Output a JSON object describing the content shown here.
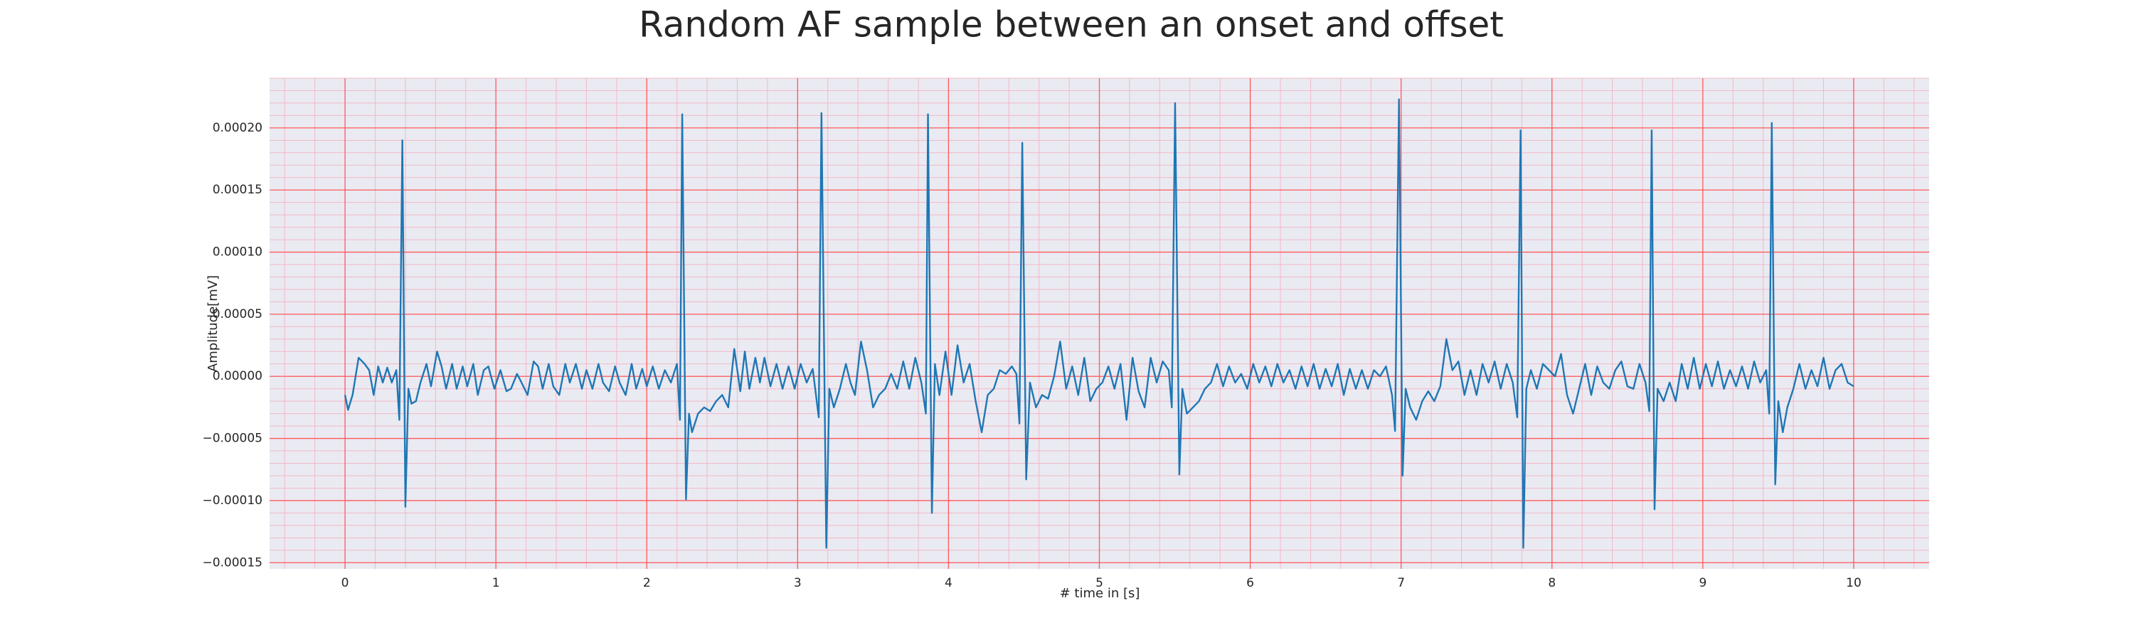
{
  "chart_data": {
    "type": "line",
    "title": "Random AF sample between an onset and offset",
    "x_label": "# time in [s]",
    "y_label": "Amplitude[mV]",
    "xlim": [
      -0.5,
      10.5
    ],
    "ylim": [
      -0.000155,
      0.00024
    ],
    "xticks": [
      0,
      1,
      2,
      3,
      4,
      5,
      6,
      7,
      8,
      9,
      10
    ],
    "yticks": [
      {
        "value": -0.00015,
        "label": "−0.00015"
      },
      {
        "value": -0.0001,
        "label": "−0.00010"
      },
      {
        "value": -5e-05,
        "label": "−0.00005"
      },
      {
        "value": 0,
        "label": "0.00000"
      },
      {
        "value": 5e-05,
        "label": "0.00005"
      },
      {
        "value": 0.0001,
        "label": "0.00010"
      },
      {
        "value": 0.00015,
        "label": "0.00015"
      },
      {
        "value": 0.0002,
        "label": "0.00020"
      }
    ],
    "grid": true,
    "grid_color": "#ff5a5a",
    "minor_grid_color": "#f2b8c6",
    "background": "#eaeaf2",
    "x": [
      0.0,
      0.02,
      0.05,
      0.09,
      0.13,
      0.16,
      0.19,
      0.22,
      0.25,
      0.28,
      0.31,
      0.34,
      0.36,
      0.38,
      0.4,
      0.42,
      0.44,
      0.47,
      0.5,
      0.54,
      0.57,
      0.61,
      0.64,
      0.67,
      0.71,
      0.74,
      0.78,
      0.81,
      0.85,
      0.88,
      0.92,
      0.95,
      0.99,
      1.03,
      1.07,
      1.1,
      1.14,
      1.17,
      1.21,
      1.25,
      1.28,
      1.31,
      1.35,
      1.38,
      1.42,
      1.46,
      1.49,
      1.53,
      1.57,
      1.6,
      1.64,
      1.68,
      1.71,
      1.75,
      1.79,
      1.82,
      1.86,
      1.9,
      1.93,
      1.97,
      2.0,
      2.04,
      2.08,
      2.12,
      2.16,
      2.2,
      2.22,
      2.235,
      2.26,
      2.28,
      2.3,
      2.34,
      2.38,
      2.42,
      2.46,
      2.5,
      2.54,
      2.58,
      2.62,
      2.65,
      2.68,
      2.72,
      2.75,
      2.78,
      2.82,
      2.86,
      2.9,
      2.94,
      2.98,
      3.02,
      3.06,
      3.1,
      3.14,
      3.158,
      3.19,
      3.21,
      3.24,
      3.28,
      3.32,
      3.35,
      3.38,
      3.42,
      3.46,
      3.5,
      3.54,
      3.58,
      3.62,
      3.66,
      3.7,
      3.74,
      3.78,
      3.82,
      3.85,
      3.864,
      3.89,
      3.91,
      3.94,
      3.98,
      4.02,
      4.06,
      4.1,
      4.14,
      4.18,
      4.22,
      4.26,
      4.3,
      4.34,
      4.38,
      4.42,
      4.45,
      4.47,
      4.489,
      4.515,
      4.54,
      4.58,
      4.62,
      4.66,
      4.7,
      4.74,
      4.78,
      4.82,
      4.86,
      4.9,
      4.94,
      4.98,
      5.02,
      5.06,
      5.1,
      5.14,
      5.18,
      5.22,
      5.26,
      5.3,
      5.34,
      5.38,
      5.42,
      5.46,
      5.48,
      5.502,
      5.53,
      5.55,
      5.58,
      5.62,
      5.66,
      5.7,
      5.74,
      5.78,
      5.82,
      5.86,
      5.9,
      5.94,
      5.98,
      6.02,
      6.06,
      6.1,
      6.14,
      6.18,
      6.22,
      6.26,
      6.3,
      6.34,
      6.38,
      6.42,
      6.46,
      6.5,
      6.54,
      6.58,
      6.62,
      6.66,
      6.7,
      6.74,
      6.78,
      6.82,
      6.86,
      6.9,
      6.94,
      6.96,
      6.986,
      7.01,
      7.03,
      7.06,
      7.1,
      7.14,
      7.18,
      7.22,
      7.26,
      7.3,
      7.34,
      7.38,
      7.42,
      7.46,
      7.5,
      7.54,
      7.58,
      7.62,
      7.66,
      7.7,
      7.74,
      7.77,
      7.792,
      7.81,
      7.83,
      7.86,
      7.9,
      7.94,
      7.98,
      8.02,
      8.06,
      8.1,
      8.14,
      8.18,
      8.22,
      8.26,
      8.3,
      8.34,
      8.38,
      8.42,
      8.46,
      8.5,
      8.54,
      8.58,
      8.62,
      8.645,
      8.661,
      8.68,
      8.7,
      8.74,
      8.78,
      8.82,
      8.86,
      8.9,
      8.94,
      8.98,
      9.02,
      9.06,
      9.1,
      9.14,
      9.18,
      9.22,
      9.26,
      9.3,
      9.34,
      9.38,
      9.42,
      9.44,
      9.457,
      9.48,
      9.5,
      9.53,
      9.56,
      9.6,
      9.64,
      9.68,
      9.72,
      9.76,
      9.8,
      9.84,
      9.88,
      9.92,
      9.96,
      10.0
    ],
    "series": [
      {
        "color": "#1f77b4",
        "values": [
          -1.5e-05,
          -2.7e-05,
          -1.5e-05,
          1.5e-05,
          1e-05,
          5e-06,
          -1.5e-05,
          8e-06,
          -5e-06,
          7e-06,
          -5e-06,
          5e-06,
          -3.5e-05,
          0.00019,
          -0.000105,
          -1e-05,
          -2.2e-05,
          -2e-05,
          -5e-06,
          1e-05,
          -8e-06,
          2e-05,
          8e-06,
          -1e-05,
          1e-05,
          -1e-05,
          8e-06,
          -8e-06,
          1e-05,
          -1.5e-05,
          5e-06,
          8e-06,
          -1e-05,
          5e-06,
          -1.2e-05,
          -1e-05,
          2e-06,
          -5e-06,
          -1.5e-05,
          1.2e-05,
          8e-06,
          -1e-05,
          1e-05,
          -8e-06,
          -1.5e-05,
          1e-05,
          -5e-06,
          1e-05,
          -1e-05,
          5e-06,
          -1e-05,
          1e-05,
          -5e-06,
          -1.2e-05,
          8e-06,
          -5e-06,
          -1.5e-05,
          1e-05,
          -1e-05,
          6e-06,
          -8e-06,
          8e-06,
          -1e-05,
          5e-06,
          -5e-06,
          1e-05,
          -3.5e-05,
          0.000211,
          -9.9e-05,
          -3e-05,
          -4.5e-05,
          -3e-05,
          -2.5e-05,
          -2.8e-05,
          -2e-05,
          -1.5e-05,
          -2.5e-05,
          2.2e-05,
          -1.2e-05,
          2e-05,
          -1e-05,
          1.5e-05,
          -5e-06,
          1.5e-05,
          -8e-06,
          1e-05,
          -1e-05,
          8e-06,
          -1e-05,
          1e-05,
          -5e-06,
          6e-06,
          -3.3e-05,
          0.000212,
          -0.000138,
          -1e-05,
          -2.5e-05,
          -1e-05,
          1e-05,
          -5e-06,
          -1.5e-05,
          2.8e-05,
          5e-06,
          -2.5e-05,
          -1.5e-05,
          -1e-05,
          2e-06,
          -1e-05,
          1.2e-05,
          -1e-05,
          1.5e-05,
          -5e-06,
          -3e-05,
          0.000211,
          -0.00011,
          1e-05,
          -1.5e-05,
          2e-05,
          -1.5e-05,
          2.5e-05,
          -5e-06,
          1e-05,
          -2e-05,
          -4.5e-05,
          -1.5e-05,
          -1e-05,
          5e-06,
          2e-06,
          8e-06,
          2e-06,
          -3.8e-05,
          0.000188,
          -8.3e-05,
          -5e-06,
          -2.5e-05,
          -1.5e-05,
          -1.8e-05,
          0,
          2.8e-05,
          -1e-05,
          8e-06,
          -1.5e-05,
          1.5e-05,
          -2e-05,
          -1e-05,
          -5e-06,
          8e-06,
          -1e-05,
          1e-05,
          -3.5e-05,
          1.5e-05,
          -1.2e-05,
          -2.5e-05,
          1.5e-05,
          -5e-06,
          1.2e-05,
          5e-06,
          -2.5e-05,
          0.00022,
          -7.9e-05,
          -1e-05,
          -3e-05,
          -2.5e-05,
          -2e-05,
          -1e-05,
          -5e-06,
          1e-05,
          -8e-06,
          8e-06,
          -5e-06,
          2e-06,
          -1e-05,
          1e-05,
          -5e-06,
          8e-06,
          -8e-06,
          1e-05,
          -5e-06,
          5e-06,
          -1e-05,
          8e-06,
          -8e-06,
          1e-05,
          -1e-05,
          6e-06,
          -8e-06,
          1e-05,
          -1.5e-05,
          6e-06,
          -1e-05,
          5e-06,
          -1e-05,
          5e-06,
          0,
          8e-06,
          -1.5e-05,
          -4.4e-05,
          0.000223,
          -8e-05,
          -1e-05,
          -2.5e-05,
          -3.5e-05,
          -2e-05,
          -1.2e-05,
          -2e-05,
          -8e-06,
          3e-05,
          5e-06,
          1.2e-05,
          -1.5e-05,
          5e-06,
          -1.5e-05,
          1e-05,
          -5e-06,
          1.2e-05,
          -1e-05,
          1e-05,
          -5e-06,
          -3.3e-05,
          0.000198,
          -0.000138,
          -1e-05,
          5e-06,
          -1e-05,
          1e-05,
          5e-06,
          0,
          1.8e-05,
          -1.5e-05,
          -3e-05,
          -1e-05,
          1e-05,
          -1.5e-05,
          8e-06,
          -5e-06,
          -1e-05,
          5e-06,
          1.2e-05,
          -8e-06,
          -1e-05,
          1e-05,
          -5e-06,
          -2.8e-05,
          0.000198,
          -0.000107,
          -1e-05,
          -2e-05,
          -5e-06,
          -2e-05,
          1e-05,
          -1e-05,
          1.5e-05,
          -1e-05,
          1e-05,
          -8e-06,
          1.2e-05,
          -1e-05,
          5e-06,
          -8e-06,
          8e-06,
          -1e-05,
          1.2e-05,
          -5e-06,
          5e-06,
          -3e-05,
          0.000204,
          -8.7e-05,
          -2e-05,
          -4.5e-05,
          -2.5e-05,
          -1e-05,
          1e-05,
          -1e-05,
          5e-06,
          -8e-06,
          1.5e-05,
          -1e-05,
          5e-06,
          1e-05,
          -5e-06,
          -8e-06
        ]
      }
    ]
  }
}
